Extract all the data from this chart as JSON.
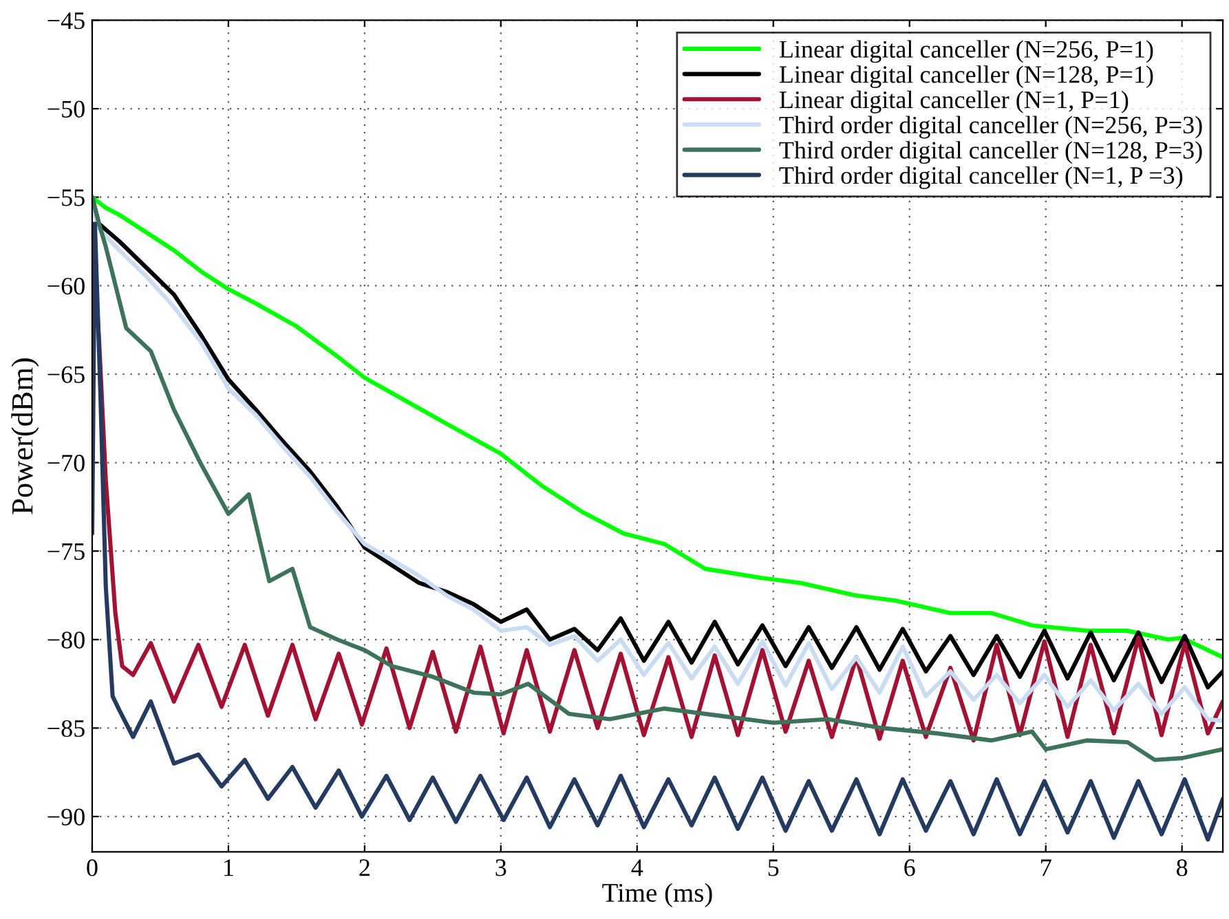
{
  "chart_data": {
    "type": "line",
    "xlabel": "Time (ms)",
    "ylabel": "Power(dBm)",
    "xlim": [
      0,
      8.3
    ],
    "ylim": [
      -92,
      -45
    ],
    "xticks": [
      0,
      1,
      2,
      3,
      4,
      5,
      6,
      7,
      8
    ],
    "yticks": [
      -90,
      -85,
      -80,
      -75,
      -70,
      -65,
      -60,
      -55,
      -50,
      -45
    ],
    "grid": true,
    "legend": "top right",
    "line_style": "solid",
    "marker": "none",
    "series": [
      {
        "name": "Linear digital canceller (N=256, P=1)",
        "color": "#00ff00",
        "x": [
          0,
          0.1,
          0.2,
          0.4,
          0.6,
          0.8,
          1.0,
          1.2,
          1.5,
          1.8,
          2.0,
          2.3,
          2.6,
          3.0,
          3.3,
          3.6,
          3.9,
          4.2,
          4.5,
          4.9,
          5.2,
          5.6,
          5.9,
          6.3,
          6.6,
          6.9,
          7.3,
          7.6,
          7.9,
          8.0,
          8.3
        ],
        "values": [
          -55,
          -55.6,
          -56,
          -57,
          -58,
          -59.2,
          -60.2,
          -61,
          -62.3,
          -64,
          -65.2,
          -66.5,
          -67.8,
          -69.5,
          -71.3,
          -72.8,
          -74,
          -74.6,
          -76,
          -76.5,
          -76.8,
          -77.5,
          -77.8,
          -78.5,
          -78.5,
          -79.2,
          -79.5,
          -79.5,
          -80,
          -79.9,
          -81
        ]
      },
      {
        "name": "Linear digital canceller (N=128, P=1)",
        "color": "#000000",
        "x": [
          0,
          0.05,
          0.2,
          0.4,
          0.6,
          0.8,
          1.0,
          1.2,
          1.4,
          1.6,
          1.8,
          2.0,
          2.2,
          2.4,
          2.6,
          2.8,
          3.0,
          3.19,
          3.36,
          3.54,
          3.71,
          3.88,
          4.05,
          4.23,
          4.4,
          4.57,
          4.74,
          4.92,
          5.09,
          5.26,
          5.43,
          5.61,
          5.78,
          5.95,
          6.12,
          6.3,
          6.47,
          6.64,
          6.81,
          6.99,
          7.16,
          7.33,
          7.5,
          7.68,
          7.85,
          8.02,
          8.19,
          8.3
        ],
        "values": [
          -55,
          -56.5,
          -57.5,
          -59,
          -60.5,
          -62.8,
          -65.3,
          -67,
          -68.8,
          -70.5,
          -72.5,
          -74.8,
          -75.8,
          -76.8,
          -77.3,
          -78,
          -79,
          -78.3,
          -80,
          -79.4,
          -80.6,
          -78.8,
          -81.2,
          -79,
          -81.3,
          -79,
          -81.4,
          -79.2,
          -81.5,
          -79.3,
          -81.6,
          -79.3,
          -81.7,
          -79.4,
          -81.8,
          -79.8,
          -82,
          -79.8,
          -82.1,
          -79.5,
          -82.2,
          -79.6,
          -82.3,
          -79.6,
          -82.4,
          -79.8,
          -82.7,
          -81.8
        ]
      },
      {
        "name": "Linear digital canceller (N=1, P=1)",
        "color": "#a31232",
        "x": [
          0,
          0.05,
          0.1,
          0.17,
          0.22,
          0.3,
          0.43,
          0.6,
          0.78,
          0.95,
          1.12,
          1.29,
          1.47,
          1.64,
          1.81,
          1.98,
          2.16,
          2.33,
          2.5,
          2.67,
          2.85,
          3.02,
          3.19,
          3.36,
          3.54,
          3.71,
          3.88,
          4.05,
          4.23,
          4.4,
          4.57,
          4.74,
          4.92,
          5.09,
          5.26,
          5.43,
          5.61,
          5.78,
          5.95,
          6.12,
          6.3,
          6.47,
          6.64,
          6.81,
          6.99,
          7.16,
          7.33,
          7.5,
          7.68,
          7.85,
          8.02,
          8.19,
          8.3
        ],
        "values": [
          -56.5,
          -63,
          -71,
          -78.5,
          -81.5,
          -82,
          -80.2,
          -83.5,
          -80.3,
          -83.8,
          -80.3,
          -84.3,
          -80.3,
          -84.5,
          -80.8,
          -84.8,
          -80.5,
          -85,
          -80.7,
          -85.2,
          -80.4,
          -85.3,
          -80.6,
          -85.2,
          -80.6,
          -85,
          -80.8,
          -85.4,
          -81,
          -85.5,
          -80.9,
          -85.4,
          -80.6,
          -85.2,
          -81.2,
          -85.5,
          -81,
          -85.6,
          -81.2,
          -85.5,
          -81.6,
          -85.7,
          -80.3,
          -85.4,
          -80.1,
          -85.5,
          -80.3,
          -85.3,
          -79.9,
          -85.4,
          -80.2,
          -85.3,
          -83.5
        ]
      },
      {
        "name": "Third order digital canceller (N=256, P=3)",
        "color": "#c9dcf2",
        "x": [
          0,
          0.05,
          0.2,
          0.4,
          0.6,
          0.8,
          1.0,
          1.2,
          1.4,
          1.6,
          1.8,
          2.0,
          2.2,
          2.4,
          2.6,
          2.8,
          3.0,
          3.19,
          3.36,
          3.54,
          3.71,
          3.88,
          4.05,
          4.23,
          4.4,
          4.57,
          4.74,
          4.92,
          5.09,
          5.26,
          5.43,
          5.61,
          5.78,
          5.95,
          6.12,
          6.3,
          6.47,
          6.64,
          6.81,
          6.99,
          7.16,
          7.33,
          7.5,
          7.68,
          7.85,
          8.02,
          8.19,
          8.3
        ],
        "values": [
          -55.5,
          -56.8,
          -58,
          -59.5,
          -61.2,
          -63.2,
          -65.8,
          -67.3,
          -69.1,
          -70.8,
          -72.8,
          -74.6,
          -75.5,
          -76.4,
          -77.5,
          -78.3,
          -79.5,
          -79.3,
          -80.3,
          -79.8,
          -81.2,
          -80,
          -82,
          -80.2,
          -82.2,
          -80.4,
          -82.5,
          -80.1,
          -82.6,
          -80.2,
          -82.8,
          -81,
          -83,
          -80.4,
          -83.2,
          -81.8,
          -83.4,
          -82,
          -83.6,
          -82,
          -83.8,
          -82.3,
          -84,
          -82.5,
          -84.2,
          -82.7,
          -84.5,
          -84.6
        ]
      },
      {
        "name": "Third order digital canceller (N=128, P=3)",
        "color": "#3d7358",
        "x": [
          0,
          0.05,
          0.1,
          0.25,
          0.43,
          0.6,
          0.8,
          1.0,
          1.15,
          1.3,
          1.47,
          1.6,
          1.8,
          2.0,
          2.2,
          2.5,
          2.8,
          3.0,
          3.2,
          3.5,
          3.8,
          4.2,
          4.6,
          5.0,
          5.4,
          5.8,
          6.2,
          6.6,
          6.9,
          7.0,
          7.3,
          7.6,
          7.8,
          8.0,
          8.3
        ],
        "values": [
          -55,
          -56.5,
          -57.8,
          -62.4,
          -63.7,
          -67,
          -70.1,
          -72.9,
          -71.8,
          -76.7,
          -76,
          -79.3,
          -80,
          -80.6,
          -81.5,
          -82.1,
          -83,
          -83.1,
          -82.5,
          -84.2,
          -84.5,
          -83.9,
          -84.3,
          -84.7,
          -84.5,
          -85,
          -85.3,
          -85.7,
          -85.2,
          -86.2,
          -85.7,
          -85.8,
          -86.8,
          -86.7,
          -86.2
        ]
      },
      {
        "name": "Third order digital canceller (N=1, P =3)",
        "color": "#243a60",
        "x": [
          0,
          0.02,
          0.06,
          0.1,
          0.15,
          0.2,
          0.3,
          0.43,
          0.6,
          0.78,
          0.95,
          1.12,
          1.29,
          1.47,
          1.64,
          1.81,
          1.98,
          2.16,
          2.33,
          2.5,
          2.67,
          2.85,
          3.02,
          3.19,
          3.36,
          3.54,
          3.71,
          3.88,
          4.05,
          4.23,
          4.4,
          4.57,
          4.74,
          4.92,
          5.09,
          5.26,
          5.43,
          5.61,
          5.78,
          5.95,
          6.12,
          6.3,
          6.47,
          6.64,
          6.81,
          6.99,
          7.16,
          7.33,
          7.5,
          7.68,
          7.85,
          8.02,
          8.19,
          8.3
        ],
        "values": [
          -74,
          -56.5,
          -66,
          -77,
          -83.2,
          -84,
          -85.5,
          -83.5,
          -87,
          -86.5,
          -88.3,
          -86.8,
          -89,
          -87.2,
          -89.5,
          -87.4,
          -90,
          -87.7,
          -90.2,
          -87.8,
          -90.3,
          -87.7,
          -90.2,
          -87.8,
          -90.6,
          -87.9,
          -90.5,
          -87.7,
          -90.6,
          -87.9,
          -90.5,
          -87.8,
          -90.7,
          -87.8,
          -90.8,
          -88,
          -90.8,
          -87.9,
          -91,
          -87.9,
          -90.8,
          -88,
          -91,
          -87.9,
          -91,
          -88,
          -90.9,
          -88,
          -91.2,
          -88,
          -91,
          -87.9,
          -91.3,
          -89
        ]
      }
    ]
  }
}
